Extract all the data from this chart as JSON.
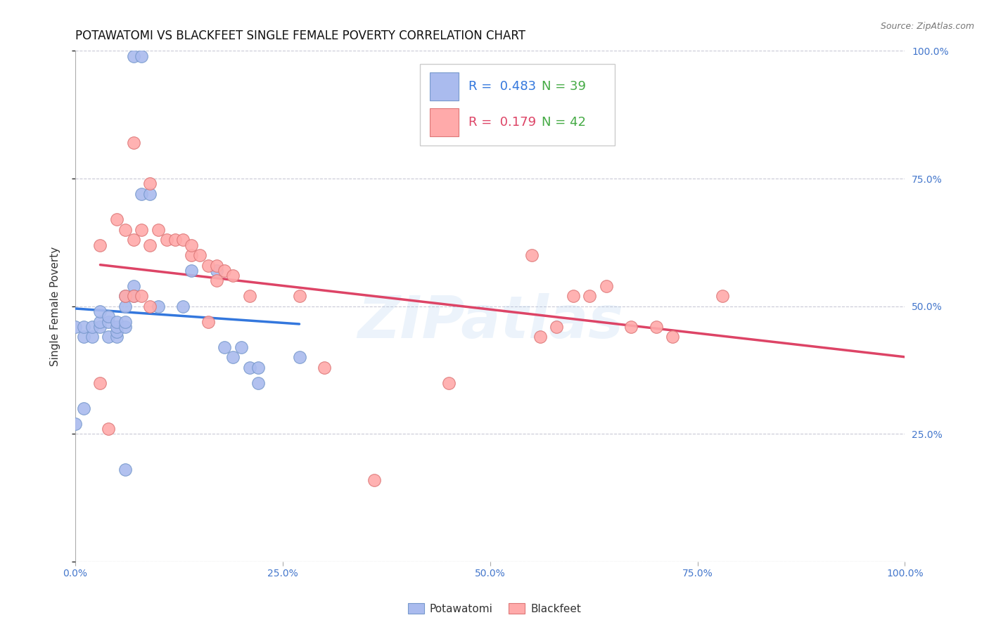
{
  "title": "POTAWATOMI VS BLACKFEET SINGLE FEMALE POVERTY CORRELATION CHART",
  "source": "Source: ZipAtlas.com",
  "ylabel": "Single Female Poverty",
  "xlim": [
    0,
    1
  ],
  "ylim": [
    0,
    1
  ],
  "xticks": [
    0.0,
    0.25,
    0.5,
    0.75,
    1.0
  ],
  "yticks": [
    0.0,
    0.25,
    0.5,
    0.75,
    1.0
  ],
  "xtick_labels": [
    "0.0%",
    "25.0%",
    "50.0%",
    "75.0%",
    "100.0%"
  ],
  "ytick_labels": [
    "",
    "25.0%",
    "50.0%",
    "75.0%",
    "100.0%"
  ],
  "background_color": "#ffffff",
  "grid_color": "#bbbbcc",
  "potawatomi_color": "#aabbee",
  "blackfeet_color": "#ffaaaa",
  "potawatomi_edge": "#7799cc",
  "blackfeet_edge": "#dd7777",
  "blue_line_color": "#3377dd",
  "pink_line_color": "#dd4466",
  "legend_R_blue": "0.483",
  "legend_N_blue": "39",
  "legend_R_pink": "0.179",
  "legend_N_pink": "42",
  "potawatomi_x": [
    0.07,
    0.08,
    0.0,
    0.01,
    0.01,
    0.02,
    0.02,
    0.03,
    0.03,
    0.03,
    0.04,
    0.04,
    0.04,
    0.05,
    0.05,
    0.05,
    0.05,
    0.06,
    0.06,
    0.06,
    0.06,
    0.07,
    0.07,
    0.08,
    0.09,
    0.1,
    0.13,
    0.14,
    0.17,
    0.18,
    0.19,
    0.2,
    0.21,
    0.22,
    0.22,
    0.27,
    0.01,
    0.0,
    0.06
  ],
  "potawatomi_y": [
    0.99,
    0.99,
    0.46,
    0.44,
    0.46,
    0.44,
    0.46,
    0.46,
    0.47,
    0.49,
    0.47,
    0.48,
    0.44,
    0.44,
    0.45,
    0.46,
    0.47,
    0.46,
    0.47,
    0.5,
    0.52,
    0.54,
    0.52,
    0.72,
    0.72,
    0.5,
    0.5,
    0.57,
    0.57,
    0.42,
    0.4,
    0.42,
    0.38,
    0.35,
    0.38,
    0.4,
    0.3,
    0.27,
    0.18
  ],
  "blackfeet_x": [
    0.07,
    0.09,
    0.03,
    0.05,
    0.06,
    0.07,
    0.08,
    0.09,
    0.1,
    0.11,
    0.12,
    0.13,
    0.14,
    0.14,
    0.15,
    0.16,
    0.17,
    0.17,
    0.18,
    0.19,
    0.21,
    0.27,
    0.06,
    0.07,
    0.08,
    0.09,
    0.55,
    0.6,
    0.62,
    0.64,
    0.67,
    0.7,
    0.72,
    0.78,
    0.56,
    0.58,
    0.16,
    0.3,
    0.45,
    0.03,
    0.04,
    0.36
  ],
  "blackfeet_y": [
    0.82,
    0.74,
    0.62,
    0.67,
    0.65,
    0.63,
    0.65,
    0.62,
    0.65,
    0.63,
    0.63,
    0.63,
    0.6,
    0.62,
    0.6,
    0.58,
    0.55,
    0.58,
    0.57,
    0.56,
    0.52,
    0.52,
    0.52,
    0.52,
    0.52,
    0.5,
    0.6,
    0.52,
    0.52,
    0.54,
    0.46,
    0.46,
    0.44,
    0.52,
    0.44,
    0.46,
    0.47,
    0.38,
    0.35,
    0.35,
    0.26,
    0.16
  ],
  "watermark": "ZIPatlas",
  "title_fontsize": 12,
  "axis_label_fontsize": 11,
  "tick_fontsize": 10,
  "legend_fontsize": 13
}
